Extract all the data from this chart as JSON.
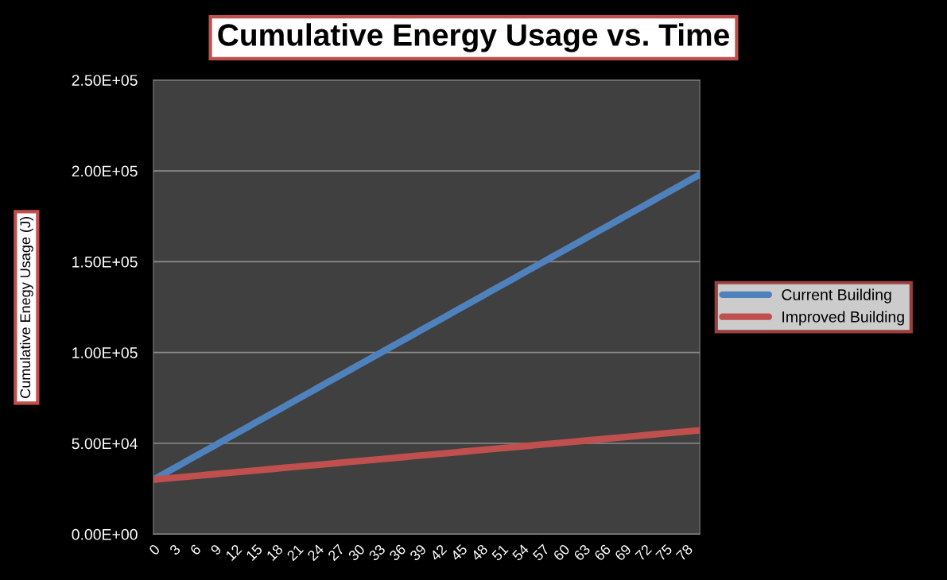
{
  "chart_data": {
    "type": "line",
    "title": "Cumulative Energy Usage vs. Time",
    "ylabel": "Cumulative Enegy Usage (J)",
    "categories": [
      "0",
      null,
      null,
      "3",
      null,
      null,
      "6",
      null,
      null,
      "9",
      null,
      null,
      "12",
      null,
      null,
      "15",
      null,
      null,
      "18",
      null,
      null,
      "21",
      null,
      null,
      "24",
      null,
      null,
      "27",
      null,
      null,
      "30",
      null,
      null,
      "33",
      null,
      null,
      "36",
      null,
      null,
      "39",
      null,
      null,
      "42",
      null,
      null,
      "45",
      null,
      null,
      "48",
      null,
      null,
      "51",
      null,
      null,
      "54",
      null,
      null,
      "57",
      null,
      null,
      "60",
      null,
      null,
      "63",
      null,
      null,
      "66",
      null,
      null,
      "69",
      null,
      null,
      "72",
      null,
      null,
      "75",
      null,
      null,
      "78",
      null,
      null
    ],
    "series": [
      {
        "name": "Current Building",
        "color": "#4f81bd",
        "values": [
          30000,
          32100,
          34200,
          36300,
          38400,
          40500,
          42600,
          44700,
          46800,
          48900,
          51000,
          53100,
          55200,
          57300,
          59400,
          61500,
          63600,
          65700,
          67800,
          69900,
          72000,
          74100,
          76200,
          78300,
          80400,
          82500,
          84600,
          86700,
          88800,
          90900,
          93000,
          95100,
          97200,
          99300,
          101400,
          103500,
          105600,
          107700,
          109800,
          111900,
          114000,
          116100,
          118200,
          120300,
          122400,
          124500,
          126600,
          128700,
          130800,
          132900,
          135000,
          137100,
          139200,
          141300,
          143400,
          145500,
          147600,
          149700,
          151800,
          153900,
          156000,
          158100,
          160200,
          162300,
          164400,
          166500,
          168600,
          170700,
          172800,
          174900,
          177000,
          179100,
          181200,
          183300,
          185400,
          187500,
          189600,
          191700,
          193800,
          195900,
          198000
        ]
      },
      {
        "name": "Improved Building",
        "color": "#c0504d",
        "values": [
          30000,
          30340,
          30680,
          31020,
          31360,
          31700,
          32040,
          32380,
          32720,
          33060,
          33400,
          33740,
          34080,
          34420,
          34760,
          35100,
          35440,
          35780,
          36120,
          36460,
          36800,
          37140,
          37480,
          37820,
          38160,
          38500,
          38840,
          39180,
          39520,
          39860,
          40200,
          40540,
          40880,
          41220,
          41560,
          41900,
          42240,
          42580,
          42920,
          43260,
          43600,
          43940,
          44280,
          44620,
          44960,
          45300,
          45640,
          45980,
          46320,
          46660,
          47000,
          47340,
          47680,
          48020,
          48360,
          48700,
          49040,
          49380,
          49720,
          50060,
          50400,
          50740,
          51080,
          51420,
          51760,
          52100,
          52440,
          52780,
          53120,
          53460,
          53800,
          54140,
          54480,
          54820,
          55160,
          55500,
          55840,
          56180,
          56520,
          56860,
          57200
        ]
      }
    ],
    "ylim": [
      0,
      250000
    ],
    "yticks": [
      {
        "value": 0,
        "label": "0.00E+00"
      },
      {
        "value": 50000,
        "label": "5.00E+04"
      },
      {
        "value": 100000,
        "label": "1.00E+05"
      },
      {
        "value": 150000,
        "label": "1.50E+05"
      },
      {
        "value": 200000,
        "label": "2.00E+05"
      },
      {
        "value": 250000,
        "label": "2.50E+05"
      }
    ],
    "grid": "y",
    "legend": "right"
  }
}
